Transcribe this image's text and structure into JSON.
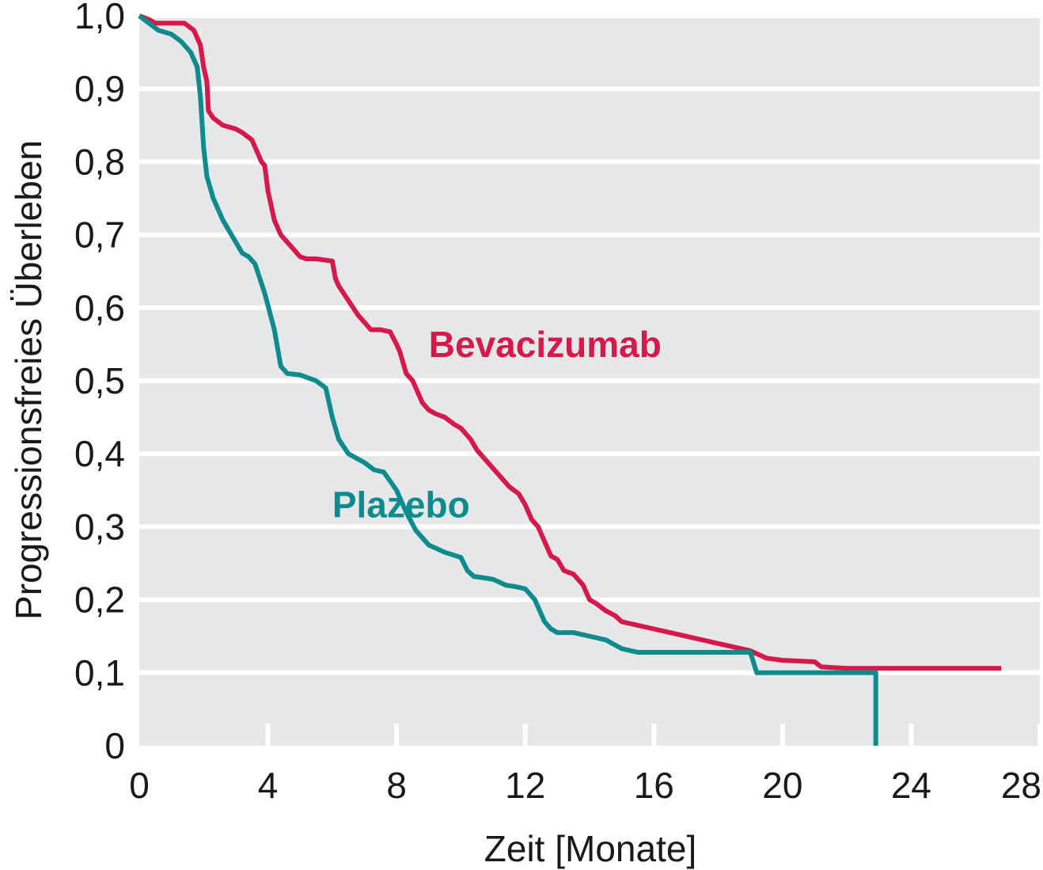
{
  "chart_data": {
    "type": "line",
    "step": true,
    "title": "",
    "xlabel": "Zeit [Monate]",
    "ylabel": "Progressionsfreies Überleben",
    "xlim": [
      0,
      28
    ],
    "ylim": [
      0,
      1.0
    ],
    "x_ticks": [
      0,
      4,
      8,
      12,
      16,
      20,
      24,
      28
    ],
    "x_tick_labels": [
      "0",
      "4",
      "8",
      "12",
      "16",
      "20",
      "24",
      "28"
    ],
    "y_ticks": [
      0,
      0.1,
      0.2,
      0.3,
      0.4,
      0.5,
      0.6,
      0.7,
      0.8,
      0.9,
      1.0
    ],
    "y_tick_labels": [
      "0",
      "0,1",
      "0,2",
      "0,3",
      "0,4",
      "0,5",
      "0,6",
      "0,7",
      "0,8",
      "0,9",
      "1,0"
    ],
    "grid": "horizontal",
    "background": "#e6e7e9",
    "legend": "inline labels",
    "series": [
      {
        "name": "Bevacizumab",
        "color": "#d6184a",
        "label_pos": [
          9,
          0.55
        ],
        "x": [
          0,
          0.3,
          0.5,
          1.4,
          1.7,
          1.9,
          2.0,
          2.1,
          2.15,
          2.3,
          2.6,
          3.0,
          3.2,
          3.5,
          3.7,
          3.8,
          3.9,
          4.0,
          4.2,
          4.4,
          4.8,
          5.0,
          5.2,
          5.5,
          6.0,
          6.1,
          6.2,
          6.5,
          6.8,
          7.0,
          7.2,
          7.5,
          7.8,
          8.0,
          8.1,
          8.3,
          8.5,
          8.8,
          9.0,
          9.2,
          9.5,
          9.8,
          10.0,
          10.1,
          10.3,
          10.5,
          10.8,
          11.0,
          11.2,
          11.5,
          11.8,
          12.0,
          12.2,
          12.4,
          12.5,
          12.7,
          12.8,
          13.0,
          13.2,
          13.5,
          13.8,
          14.0,
          14.2,
          14.5,
          14.8,
          15.0,
          15.5,
          16.0,
          16.5,
          17.0,
          17.5,
          18.0,
          19.0,
          19.5,
          20.0,
          21.0,
          21.2,
          22.0,
          23.0,
          24.0,
          25.0,
          26.0,
          26.8
        ],
        "y": [
          1.0,
          0.995,
          0.99,
          0.99,
          0.98,
          0.96,
          0.93,
          0.91,
          0.87,
          0.86,
          0.85,
          0.845,
          0.84,
          0.83,
          0.81,
          0.8,
          0.795,
          0.76,
          0.72,
          0.7,
          0.68,
          0.67,
          0.667,
          0.667,
          0.664,
          0.64,
          0.63,
          0.61,
          0.59,
          0.58,
          0.57,
          0.57,
          0.567,
          0.55,
          0.54,
          0.51,
          0.5,
          0.47,
          0.46,
          0.455,
          0.45,
          0.44,
          0.435,
          0.43,
          0.42,
          0.405,
          0.39,
          0.38,
          0.37,
          0.355,
          0.345,
          0.33,
          0.31,
          0.3,
          0.29,
          0.27,
          0.26,
          0.255,
          0.24,
          0.235,
          0.22,
          0.2,
          0.195,
          0.185,
          0.178,
          0.17,
          0.165,
          0.16,
          0.155,
          0.15,
          0.145,
          0.14,
          0.13,
          0.12,
          0.117,
          0.115,
          0.108,
          0.106,
          0.106,
          0.106,
          0.106,
          0.106,
          0.106
        ]
      },
      {
        "name": "Plazebo",
        "color": "#0e8b8d",
        "label_pos": [
          6,
          0.33
        ],
        "x": [
          0,
          0.3,
          0.6,
          1.0,
          1.3,
          1.6,
          1.8,
          1.9,
          2.0,
          2.1,
          2.3,
          2.6,
          3.0,
          3.2,
          3.4,
          3.6,
          3.9,
          4.2,
          4.4,
          4.6,
          5.0,
          5.5,
          5.8,
          6.0,
          6.2,
          6.5,
          7.0,
          7.3,
          7.6,
          8.0,
          8.3,
          8.6,
          9.0,
          9.5,
          10.0,
          10.2,
          10.4,
          10.7,
          11.0,
          11.4,
          11.7,
          12.0,
          12.3,
          12.5,
          12.6,
          12.8,
          13.0,
          13.5,
          14.0,
          14.5,
          15.0,
          15.5,
          16.0,
          17.0,
          18.0,
          19.0,
          19.2,
          19.5,
          20.0,
          21.0,
          22.0,
          22.9,
          22.9
        ],
        "y": [
          1.0,
          0.99,
          0.98,
          0.975,
          0.965,
          0.95,
          0.93,
          0.89,
          0.82,
          0.78,
          0.75,
          0.72,
          0.69,
          0.675,
          0.67,
          0.66,
          0.62,
          0.57,
          0.52,
          0.51,
          0.508,
          0.5,
          0.49,
          0.45,
          0.42,
          0.4,
          0.388,
          0.378,
          0.375,
          0.35,
          0.32,
          0.295,
          0.275,
          0.265,
          0.258,
          0.24,
          0.232,
          0.23,
          0.228,
          0.22,
          0.218,
          0.215,
          0.2,
          0.18,
          0.17,
          0.16,
          0.155,
          0.155,
          0.15,
          0.145,
          0.133,
          0.128,
          0.128,
          0.128,
          0.128,
          0.128,
          0.1,
          0.1,
          0.1,
          0.1,
          0.1,
          0.1,
          0.0
        ]
      }
    ]
  }
}
